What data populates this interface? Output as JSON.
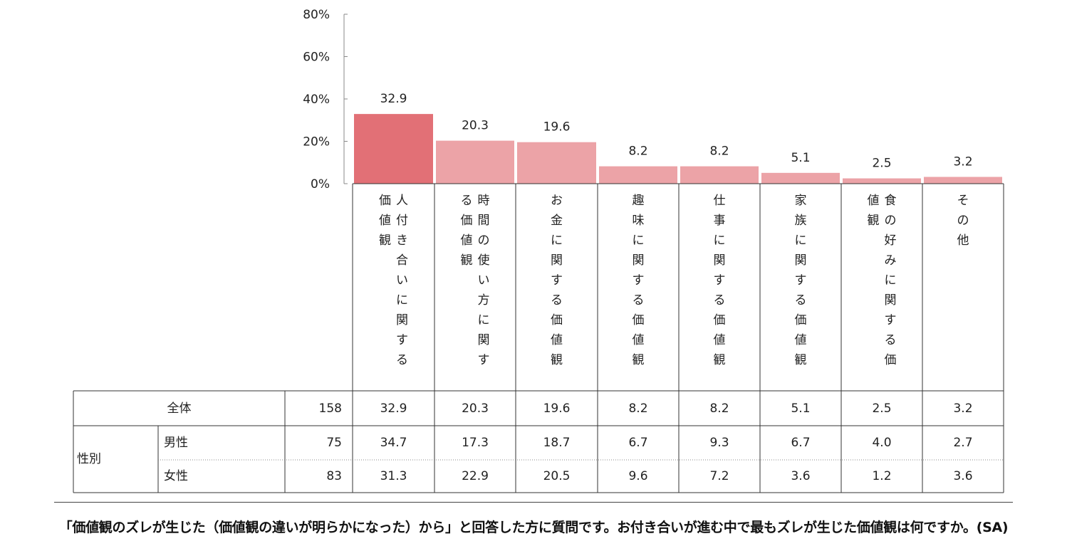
{
  "chart_data": {
    "type": "bar",
    "categories": [
      "人付き合いに関する価値観",
      "時間の使い方に関する価値観",
      "お金に関する価値観",
      "趣味に関する価値観",
      "仕事に関する価値観",
      "家族に関する価値観",
      "食の好みに関する価値観",
      "その他"
    ],
    "category_columns": [
      [
        "人付き合いに関する",
        "価値観"
      ],
      [
        "時間の使い方に関す",
        "る価値観"
      ],
      [
        "お金に関する価値観"
      ],
      [
        "趣味に関する価値観"
      ],
      [
        "仕事に関する価値観"
      ],
      [
        "家族に関する価値観"
      ],
      [
        "食の好みに関する価",
        "値観"
      ],
      [
        "その他"
      ]
    ],
    "values": [
      32.9,
      20.3,
      19.6,
      8.2,
      8.2,
      5.1,
      2.5,
      3.2
    ],
    "value_labels": [
      "32.9",
      "20.3",
      "19.6",
      "8.2",
      "8.2",
      "5.1",
      "2.5",
      "3.2"
    ],
    "ylim": [
      0,
      80
    ],
    "y_ticks": [
      0,
      20,
      40,
      60,
      80
    ],
    "y_tick_labels": [
      "0%",
      "20%",
      "40%",
      "60%",
      "80%"
    ],
    "highlight_color": "#e27076",
    "bar_color": "#eca3a7",
    "title": "",
    "xlabel": "",
    "ylabel": ""
  },
  "table": {
    "rows": [
      {
        "group": "",
        "label": "全体",
        "n": "158",
        "values": [
          "32.9",
          "20.3",
          "19.6",
          "8.2",
          "8.2",
          "5.1",
          "2.5",
          "3.2"
        ]
      },
      {
        "group": "性別",
        "label": "男性",
        "n": "75",
        "values": [
          "34.7",
          "17.3",
          "18.7",
          "6.7",
          "9.3",
          "6.7",
          "4.0",
          "2.7"
        ]
      },
      {
        "group": "性別",
        "label": "女性",
        "n": "83",
        "values": [
          "31.3",
          "22.9",
          "20.5",
          "9.6",
          "7.2",
          "3.6",
          "1.2",
          "3.6"
        ]
      }
    ],
    "group_label": "性別"
  },
  "caption": "「価値観のズレが生じた（価値観の違いが明らかになった）から」と回答した方に質問です。お付き合いが進む中で最もズレが生じた価値観は何ですか。(SA)"
}
